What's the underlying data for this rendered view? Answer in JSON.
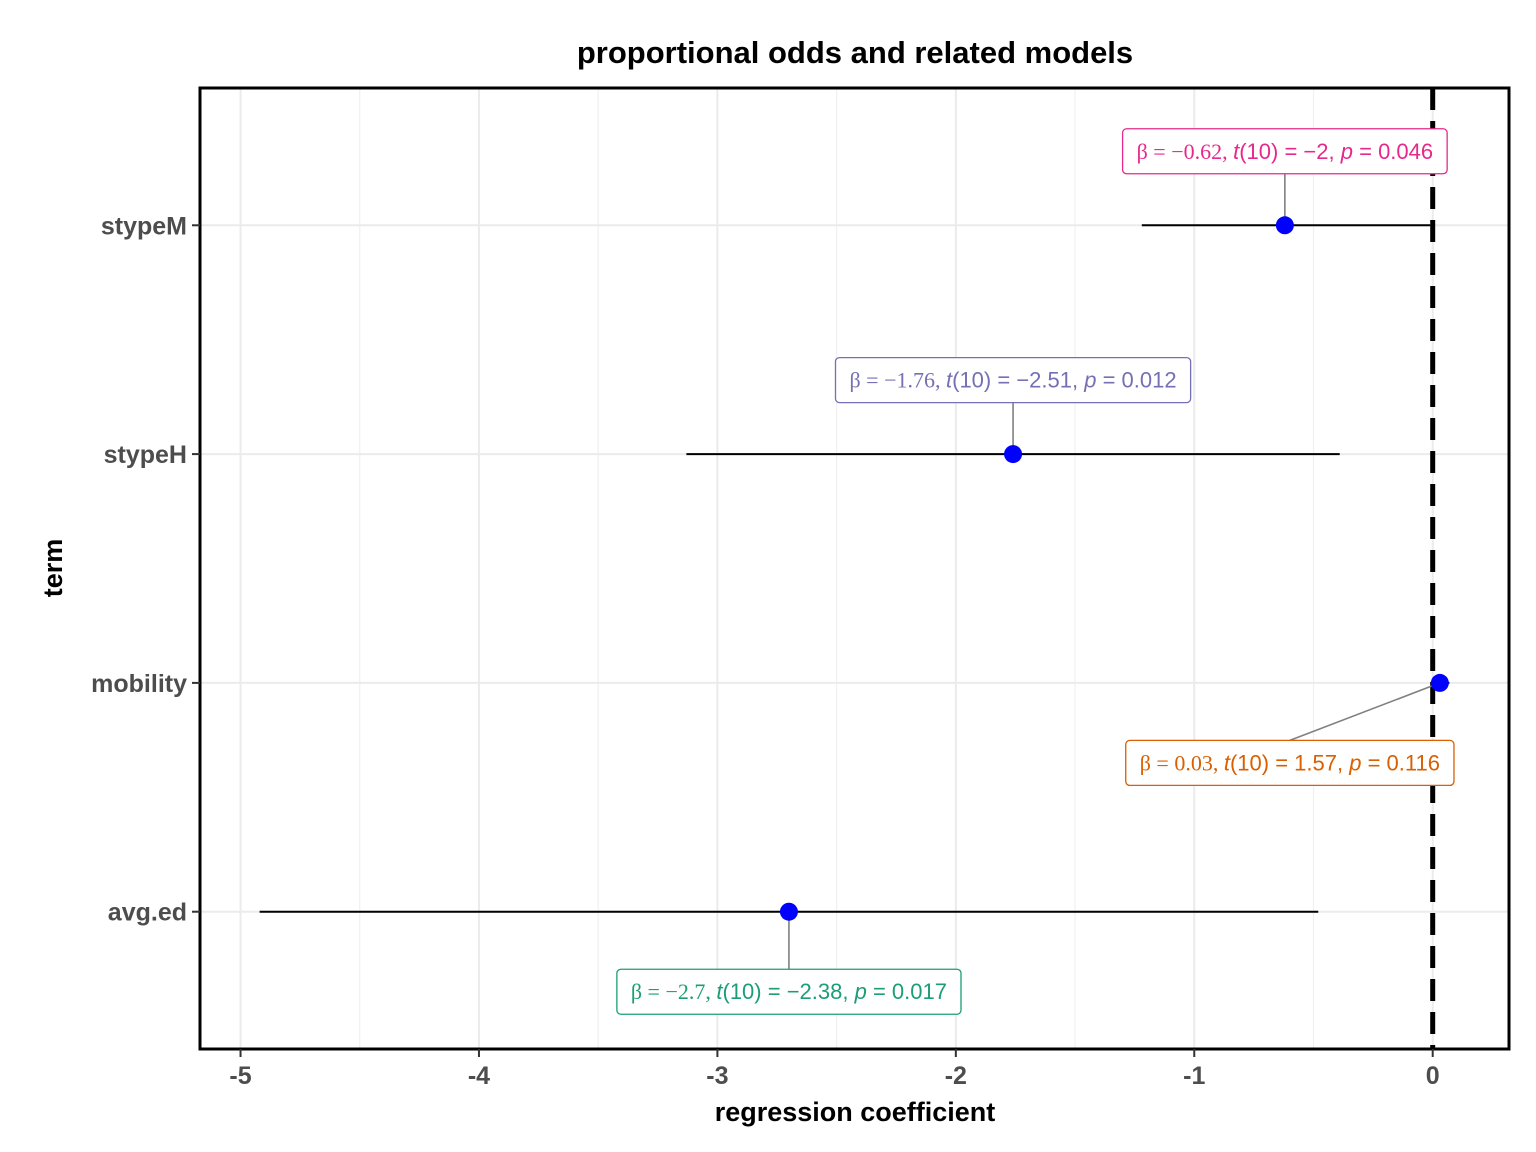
{
  "chart_data": {
    "type": "scatter",
    "title": "proportional odds and related models",
    "xlabel": "regression coefficient",
    "ylabel": "term",
    "xlim": [
      -5.17,
      0.32
    ],
    "x_ticks": [
      -5,
      -4,
      -3,
      -2,
      -1,
      0
    ],
    "x_tick_labels": [
      "-5",
      "-4",
      "-3",
      "-2",
      "-1",
      "0"
    ],
    "grid": true,
    "reference_line": {
      "x": 0,
      "style": "dashed"
    },
    "point_color": "#0000ff",
    "terms": [
      {
        "label": "stypeM",
        "estimate": -0.62,
        "conf_low": -1.22,
        "conf_high": -0.01,
        "annotation": {
          "beta": "β = −0.62,",
          "t": "t",
          "df": "(10) = −2,",
          "p": "p",
          "pval": " = 0.046"
        },
        "color": "#e7298a",
        "label_side": "above"
      },
      {
        "label": "stypeH",
        "estimate": -1.76,
        "conf_low": -3.13,
        "conf_high": -0.39,
        "annotation": {
          "beta": "β = −1.76,",
          "t": "t",
          "df": "(10) = −2.51,",
          "p": "p",
          "pval": " = 0.012"
        },
        "color": "#7570b3",
        "label_side": "above"
      },
      {
        "label": "mobility",
        "estimate": 0.03,
        "conf_low": -0.01,
        "conf_high": 0.07,
        "annotation": {
          "beta": "β = 0.03,",
          "t": "t",
          "df": "(10) = 1.57,",
          "p": "p",
          "pval": " = 0.116"
        },
        "color": "#d95f02",
        "label_side": "below"
      },
      {
        "label": "avg.ed",
        "estimate": -2.7,
        "conf_low": -4.92,
        "conf_high": -0.48,
        "annotation": {
          "beta": "β = −2.7,",
          "t": "t",
          "df": "(10) = −2.38,",
          "p": "p",
          "pval": " = 0.017"
        },
        "color": "#1b9e77",
        "label_side": "below"
      }
    ]
  }
}
